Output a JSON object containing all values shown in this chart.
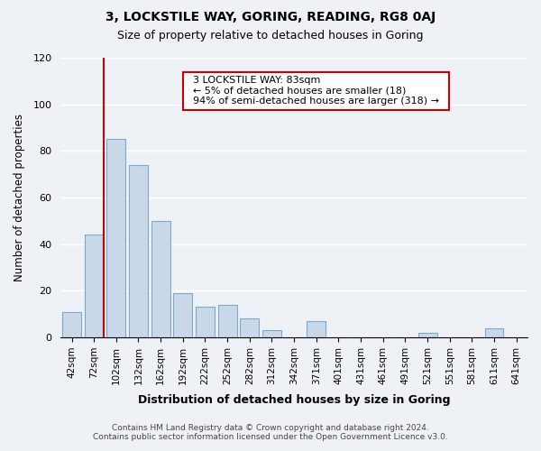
{
  "title": "3, LOCKSTILE WAY, GORING, READING, RG8 0AJ",
  "subtitle": "Size of property relative to detached houses in Goring",
  "xlabel": "Distribution of detached houses by size in Goring",
  "ylabel": "Number of detached properties",
  "categories": [
    "42sqm",
    "72sqm",
    "102sqm",
    "132sqm",
    "162sqm",
    "192sqm",
    "222sqm",
    "252sqm",
    "282sqm",
    "312sqm",
    "342sqm",
    "371sqm",
    "401sqm",
    "431sqm",
    "461sqm",
    "491sqm",
    "521sqm",
    "551sqm",
    "581sqm",
    "611sqm",
    "641sqm"
  ],
  "values": [
    11,
    44,
    85,
    74,
    50,
    19,
    13,
    14,
    8,
    3,
    0,
    7,
    0,
    0,
    0,
    0,
    2,
    0,
    0,
    4,
    0
  ],
  "bar_color": "#c8d8e8",
  "bar_edge_color": "#7fa8c8",
  "highlight_line_color": "#cc0000",
  "red_line_x": 1.425,
  "ylim": [
    0,
    120
  ],
  "yticks": [
    0,
    20,
    40,
    60,
    80,
    100,
    120
  ],
  "annotation_title": "3 LOCKSTILE WAY: 83sqm",
  "annotation_line1": "← 5% of detached houses are smaller (18)",
  "annotation_line2": "94% of semi-detached houses are larger (318) →",
  "annotation_box_color": "#ffffff",
  "annotation_box_edge": "#cc0000",
  "footer_line1": "Contains HM Land Registry data © Crown copyright and database right 2024.",
  "footer_line2": "Contains public sector information licensed under the Open Government Licence v3.0.",
  "background_color": "#eef2f7",
  "grid_color": "#ffffff"
}
